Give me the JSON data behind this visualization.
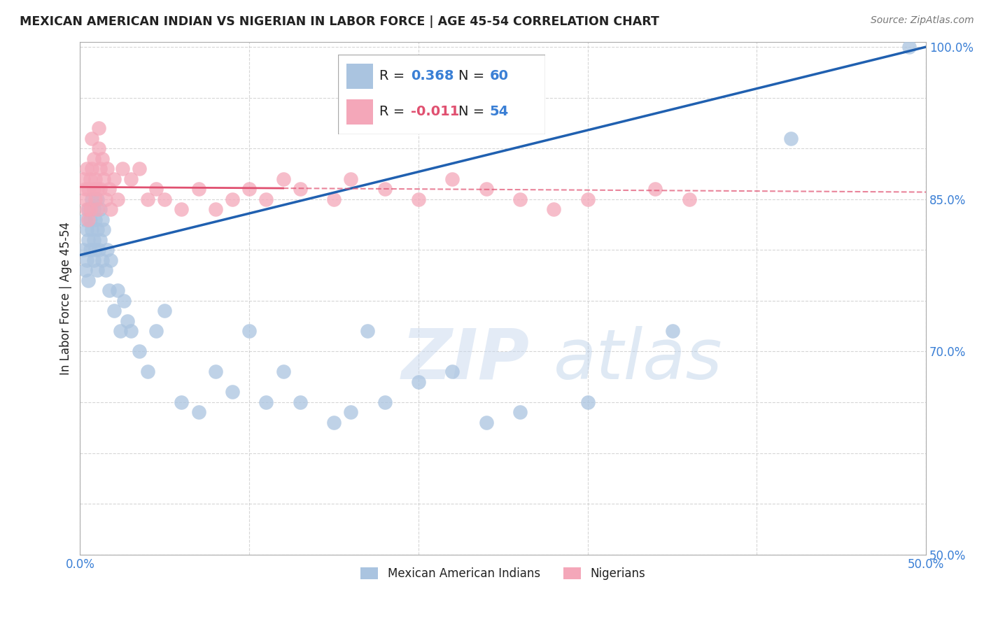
{
  "title": "MEXICAN AMERICAN INDIAN VS NIGERIAN IN LABOR FORCE | AGE 45-54 CORRELATION CHART",
  "source": "Source: ZipAtlas.com",
  "ylabel": "In Labor Force | Age 45-54",
  "xlim": [
    0.0,
    0.5
  ],
  "ylim": [
    0.5,
    1.005
  ],
  "xticks": [
    0.0,
    0.1,
    0.2,
    0.3,
    0.4,
    0.5
  ],
  "xticklabels": [
    "0.0%",
    "",
    "",
    "",
    "",
    "50.0%"
  ],
  "ytick_positions": [
    0.5,
    0.55,
    0.6,
    0.65,
    0.7,
    0.75,
    0.8,
    0.85,
    0.9,
    0.95,
    1.0
  ],
  "ytick_labels": [
    "50.0%",
    "",
    "",
    "",
    "70.0%",
    "",
    "",
    "85.0%",
    "",
    "",
    "100.0%"
  ],
  "blue_R": 0.368,
  "blue_N": 60,
  "pink_R": -0.011,
  "pink_N": 54,
  "blue_color": "#aac4e0",
  "pink_color": "#f4a7b9",
  "blue_line_color": "#2060b0",
  "pink_line_color": "#e05070",
  "grid_color": "#cccccc",
  "watermark_zip": "ZIP",
  "watermark_atlas": "atlas",
  "legend_blue_label": "Mexican American Indians",
  "legend_pink_label": "Nigerians",
  "blue_scatter_x": [
    0.002,
    0.003,
    0.003,
    0.004,
    0.004,
    0.005,
    0.005,
    0.005,
    0.006,
    0.006,
    0.007,
    0.007,
    0.008,
    0.008,
    0.008,
    0.009,
    0.009,
    0.01,
    0.01,
    0.01,
    0.011,
    0.012,
    0.012,
    0.013,
    0.013,
    0.014,
    0.015,
    0.016,
    0.017,
    0.018,
    0.02,
    0.022,
    0.024,
    0.026,
    0.028,
    0.03,
    0.035,
    0.04,
    0.045,
    0.05,
    0.06,
    0.07,
    0.08,
    0.09,
    0.1,
    0.11,
    0.12,
    0.13,
    0.15,
    0.16,
    0.17,
    0.18,
    0.2,
    0.22,
    0.24,
    0.26,
    0.3,
    0.35,
    0.42,
    0.49
  ],
  "blue_scatter_y": [
    0.8,
    0.83,
    0.78,
    0.82,
    0.79,
    0.84,
    0.81,
    0.77,
    0.83,
    0.8,
    0.85,
    0.82,
    0.84,
    0.79,
    0.81,
    0.83,
    0.8,
    0.85,
    0.82,
    0.78,
    0.8,
    0.84,
    0.81,
    0.83,
    0.79,
    0.82,
    0.78,
    0.8,
    0.76,
    0.79,
    0.74,
    0.76,
    0.72,
    0.75,
    0.73,
    0.72,
    0.7,
    0.68,
    0.72,
    0.74,
    0.65,
    0.64,
    0.68,
    0.66,
    0.72,
    0.65,
    0.68,
    0.65,
    0.63,
    0.64,
    0.72,
    0.65,
    0.67,
    0.68,
    0.63,
    0.64,
    0.65,
    0.72,
    0.91,
    1.0
  ],
  "pink_scatter_x": [
    0.002,
    0.003,
    0.003,
    0.004,
    0.004,
    0.005,
    0.005,
    0.006,
    0.006,
    0.007,
    0.007,
    0.008,
    0.008,
    0.009,
    0.009,
    0.01,
    0.01,
    0.011,
    0.011,
    0.012,
    0.012,
    0.013,
    0.014,
    0.015,
    0.016,
    0.017,
    0.018,
    0.02,
    0.022,
    0.025,
    0.03,
    0.035,
    0.04,
    0.045,
    0.05,
    0.06,
    0.07,
    0.08,
    0.09,
    0.1,
    0.11,
    0.12,
    0.13,
    0.15,
    0.16,
    0.18,
    0.2,
    0.22,
    0.24,
    0.26,
    0.28,
    0.3,
    0.34,
    0.36
  ],
  "pink_scatter_y": [
    0.87,
    0.86,
    0.85,
    0.88,
    0.84,
    0.86,
    0.83,
    0.87,
    0.84,
    0.91,
    0.88,
    0.86,
    0.89,
    0.85,
    0.87,
    0.86,
    0.84,
    0.92,
    0.9,
    0.88,
    0.86,
    0.89,
    0.87,
    0.85,
    0.88,
    0.86,
    0.84,
    0.87,
    0.85,
    0.88,
    0.87,
    0.88,
    0.85,
    0.86,
    0.85,
    0.84,
    0.86,
    0.84,
    0.85,
    0.86,
    0.85,
    0.87,
    0.86,
    0.85,
    0.87,
    0.86,
    0.85,
    0.87,
    0.86,
    0.85,
    0.84,
    0.85,
    0.86,
    0.85
  ],
  "blue_line_x0": 0.0,
  "blue_line_y0": 0.795,
  "blue_line_x1": 0.5,
  "blue_line_y1": 1.0,
  "pink_line_x0": 0.0,
  "pink_line_y0": 0.862,
  "pink_line_x1": 0.5,
  "pink_line_y1": 0.857
}
